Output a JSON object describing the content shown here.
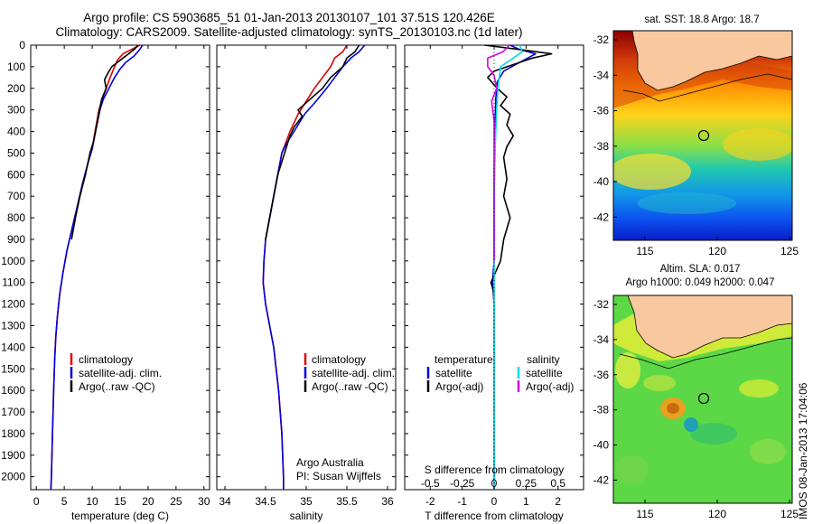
{
  "header": {
    "line1": "Argo profile: CS 5903685_51 01-Jan-2013 20130107_101 37.51S 120.426E",
    "line2": "Climatology: CARS2009. Satellite-adjusted climatology: synTS_20130103.nc (1d later)"
  },
  "colors": {
    "clim": "#dd0000",
    "sat": "#0000dd",
    "argo": "#000000",
    "sat_s": "#00dddd",
    "argo_s": "#dd00dd"
  },
  "chart_data": [
    {
      "type": "line",
      "id": "temperature",
      "xlabel": "temperature (deg C)",
      "xlim": [
        -1,
        31
      ],
      "ylim": [
        2060,
        0
      ],
      "xticks": [
        0,
        5,
        10,
        15,
        20,
        25,
        30
      ],
      "yticks": [
        0,
        100,
        200,
        300,
        400,
        500,
        600,
        700,
        800,
        900,
        1000,
        1100,
        1200,
        1300,
        1400,
        1500,
        1600,
        1700,
        1800,
        1900,
        2000
      ],
      "legend": [
        "climatology",
        "satellite-adj. clim.",
        "Argo(..raw -QC)"
      ],
      "series": [
        {
          "name": "climatology",
          "color_key": "clim",
          "points": [
            [
              18.5,
              0
            ],
            [
              17,
              20
            ],
            [
              15.5,
              40
            ],
            [
              14.5,
              70
            ],
            [
              14,
              100
            ],
            [
              13.2,
              150
            ],
            [
              12.5,
              200
            ],
            [
              11.8,
              250
            ],
            [
              11.2,
              300
            ],
            [
              10.5,
              400
            ],
            [
              10,
              480
            ],
            [
              9.2,
              550
            ],
            [
              8.2,
              650
            ],
            [
              7.3,
              750
            ],
            [
              6.4,
              850
            ],
            [
              5.5,
              950
            ],
            [
              4.8,
              1050
            ],
            [
              4.2,
              1150
            ],
            [
              3.8,
              1250
            ],
            [
              3.5,
              1350
            ],
            [
              3.3,
              1450
            ],
            [
              3.1,
              1600
            ],
            [
              2.9,
              1800
            ],
            [
              2.7,
              2000
            ],
            [
              2.6,
              2060
            ]
          ]
        },
        {
          "name": "satellite-adj. clim.",
          "color_key": "sat",
          "points": [
            [
              19,
              0
            ],
            [
              18.5,
              20
            ],
            [
              17.5,
              50
            ],
            [
              16,
              80
            ],
            [
              15,
              110
            ],
            [
              14,
              150
            ],
            [
              13,
              200
            ],
            [
              12,
              250
            ],
            [
              11.4,
              300
            ],
            [
              10.6,
              400
            ],
            [
              10,
              480
            ],
            [
              9.2,
              550
            ],
            [
              8.2,
              650
            ],
            [
              7.3,
              750
            ],
            [
              6.4,
              850
            ],
            [
              5.5,
              950
            ],
            [
              4.8,
              1050
            ],
            [
              4.2,
              1150
            ],
            [
              3.8,
              1250
            ],
            [
              3.5,
              1350
            ],
            [
              3.3,
              1450
            ],
            [
              3.1,
              1600
            ],
            [
              2.9,
              1800
            ],
            [
              2.7,
              2000
            ],
            [
              2.6,
              2060
            ]
          ]
        },
        {
          "name": "Argo(..raw -QC)",
          "color_key": "argo",
          "points": [
            [
              18.2,
              0
            ],
            [
              17.5,
              20
            ],
            [
              16.5,
              40
            ],
            [
              15.5,
              60
            ],
            [
              14.5,
              80
            ],
            [
              13.5,
              100
            ],
            [
              12.8,
              130
            ],
            [
              12.2,
              160
            ],
            [
              12.5,
              200
            ],
            [
              11.7,
              250
            ],
            [
              11.3,
              300
            ],
            [
              10.6,
              400
            ],
            [
              10.2,
              450
            ],
            [
              9.6,
              500
            ],
            [
              8.8,
              600
            ],
            [
              7.8,
              700
            ],
            [
              7,
              800
            ],
            [
              6.3,
              900
            ]
          ]
        }
      ]
    },
    {
      "type": "line",
      "id": "salinity",
      "xlabel": "salinity",
      "xlim": [
        33.9,
        36.1
      ],
      "ylim": [
        2060,
        0
      ],
      "xticks": [
        34,
        34.5,
        35,
        35.5,
        36
      ],
      "legend": [
        "climatology",
        "satellite-adj. clim.",
        "Argo(..raw -QC)"
      ],
      "credit": [
        "Argo Australia",
        "PI: Susan Wijffels"
      ],
      "series": [
        {
          "name": "climatology",
          "color_key": "clim",
          "points": [
            [
              35.5,
              0
            ],
            [
              35.45,
              30
            ],
            [
              35.35,
              60
            ],
            [
              35.3,
              100
            ],
            [
              35.2,
              150
            ],
            [
              35.1,
              200
            ],
            [
              35,
              260
            ],
            [
              34.9,
              320
            ],
            [
              34.8,
              400
            ],
            [
              34.75,
              450
            ],
            [
              34.7,
              500
            ],
            [
              34.65,
              600
            ],
            [
              34.6,
              700
            ],
            [
              34.55,
              800
            ],
            [
              34.5,
              900
            ],
            [
              34.48,
              1000
            ],
            [
              34.47,
              1100
            ],
            [
              34.5,
              1200
            ],
            [
              34.55,
              1300
            ],
            [
              34.6,
              1400
            ],
            [
              34.63,
              1500
            ],
            [
              34.66,
              1600
            ],
            [
              34.68,
              1700
            ],
            [
              34.7,
              1800
            ],
            [
              34.71,
              1900
            ],
            [
              34.72,
              2000
            ],
            [
              34.72,
              2060
            ]
          ]
        },
        {
          "name": "satellite-adj. clim.",
          "color_key": "sat",
          "points": [
            [
              35.72,
              0
            ],
            [
              35.65,
              30
            ],
            [
              35.55,
              60
            ],
            [
              35.45,
              100
            ],
            [
              35.35,
              150
            ],
            [
              35.25,
              200
            ],
            [
              35.12,
              260
            ],
            [
              34.98,
              320
            ],
            [
              34.85,
              400
            ],
            [
              34.75,
              460
            ],
            [
              34.7,
              500
            ],
            [
              34.65,
              600
            ],
            [
              34.6,
              700
            ],
            [
              34.55,
              800
            ],
            [
              34.5,
              900
            ],
            [
              34.48,
              1000
            ],
            [
              34.47,
              1100
            ],
            [
              34.5,
              1200
            ],
            [
              34.55,
              1300
            ],
            [
              34.6,
              1400
            ],
            [
              34.63,
              1500
            ],
            [
              34.66,
              1600
            ],
            [
              34.68,
              1700
            ],
            [
              34.7,
              1800
            ],
            [
              34.71,
              1900
            ],
            [
              34.72,
              2000
            ],
            [
              34.72,
              2060
            ]
          ]
        },
        {
          "name": "Argo(..raw -QC)",
          "color_key": "argo",
          "points": [
            [
              35.65,
              0
            ],
            [
              35.6,
              30
            ],
            [
              35.5,
              60
            ],
            [
              35.45,
              100
            ],
            [
              35.3,
              150
            ],
            [
              35.2,
              200
            ],
            [
              35.05,
              250
            ],
            [
              34.9,
              300
            ],
            [
              34.95,
              330
            ],
            [
              34.85,
              380
            ],
            [
              34.8,
              420
            ],
            [
              34.75,
              480
            ],
            [
              34.7,
              540
            ],
            [
              34.65,
              600
            ],
            [
              34.6,
              700
            ],
            [
              34.55,
              800
            ],
            [
              34.5,
              900
            ]
          ]
        }
      ]
    },
    {
      "type": "line",
      "id": "differences",
      "xlabel": "T difference from climatology",
      "top_label": "S difference from climatology",
      "xlim": [
        -2.8,
        2.8
      ],
      "ylim": [
        2060,
        0
      ],
      "xticks": [
        -2,
        -1,
        0,
        1,
        2
      ],
      "xtick_labels": [
        "-2",
        "-1",
        "0",
        "1",
        "2"
      ],
      "sticks": [
        -0.5,
        -0.25,
        0,
        0.25,
        0.5
      ],
      "stick_labels": [
        "-0.5",
        "-0.25",
        "0",
        "0.25",
        "0.5"
      ],
      "s_scale": 4,
      "legend_heads": [
        "temperature",
        "salinity"
      ],
      "legend": [
        "satellite",
        "Argo(-adj)",
        "satellite",
        "Argo(-adj)"
      ],
      "series": [
        {
          "name": "temperature satellite",
          "color_key": "sat",
          "var": "T",
          "points": [
            [
              0.5,
              0
            ],
            [
              0.8,
              20
            ],
            [
              1.3,
              40
            ],
            [
              0.8,
              80
            ],
            [
              0.3,
              120
            ],
            [
              0.1,
              170
            ],
            [
              0.05,
              250
            ],
            [
              0.02,
              400
            ],
            [
              0,
              600
            ],
            [
              0,
              800
            ],
            [
              0,
              1000
            ],
            [
              -0.05,
              1100
            ],
            [
              0,
              1200
            ],
            [
              0,
              1500
            ],
            [
              0,
              1800
            ],
            [
              0,
              2060
            ]
          ]
        },
        {
          "name": "temperature Argo(-adj)",
          "color_key": "argo",
          "var": "T",
          "points": [
            [
              -0.3,
              0
            ],
            [
              0.8,
              20
            ],
            [
              1.8,
              40
            ],
            [
              1.2,
              60
            ],
            [
              0.6,
              90
            ],
            [
              0,
              120
            ],
            [
              -0.2,
              150
            ],
            [
              0.1,
              200
            ],
            [
              0.4,
              240
            ],
            [
              0.2,
              280
            ],
            [
              0.5,
              320
            ],
            [
              0.4,
              370
            ],
            [
              0.6,
              420
            ],
            [
              0.4,
              470
            ],
            [
              0.3,
              520
            ],
            [
              0.4,
              620
            ],
            [
              0.3,
              700
            ],
            [
              0.5,
              800
            ],
            [
              0.3,
              900
            ],
            [
              0.2,
              1000
            ],
            [
              -0.1,
              1100
            ],
            [
              0,
              1150
            ]
          ]
        },
        {
          "name": "salinity satellite",
          "color_key": "sat_s",
          "var": "S",
          "points": [
            [
              0.2,
              0
            ],
            [
              0.22,
              30
            ],
            [
              0.15,
              60
            ],
            [
              0.05,
              100
            ],
            [
              0.03,
              200
            ],
            [
              0.02,
              300
            ],
            [
              0.01,
              450
            ],
            [
              0,
              700
            ],
            [
              0,
              1000
            ],
            [
              0,
              1500
            ],
            [
              0,
              2060
            ]
          ]
        },
        {
          "name": "salinity Argo(-adj)",
          "color_key": "argo_s",
          "var": "S",
          "points": [
            [
              0.12,
              0
            ],
            [
              0.07,
              30
            ],
            [
              -0.05,
              60
            ],
            [
              -0.05,
              100
            ],
            [
              0,
              140
            ],
            [
              0.02,
              200
            ],
            [
              -0.02,
              260
            ],
            [
              0,
              350
            ],
            [
              0,
              500
            ],
            [
              0,
              700
            ],
            [
              0,
              900
            ],
            [
              0,
              1000
            ]
          ]
        }
      ]
    }
  ],
  "maps": {
    "sst": {
      "title": "sat. SST: 18.8 Argo: 18.7",
      "yticks": [
        "-32",
        "-34",
        "-36",
        "-38",
        "-40",
        "-42"
      ],
      "xticks": [
        "115",
        "120",
        "125"
      ]
    },
    "sla": {
      "title1": "Altim. SLA: 0.017",
      "title2": "Argo h1000: 0.049 h2000: 0.047",
      "yticks": [
        "-32",
        "-34",
        "-36",
        "-38",
        "-40",
        "-42"
      ],
      "xticks": [
        "115",
        "120",
        "125"
      ]
    },
    "stamp": "IMOS 08-Jan-2013 17:04:06"
  }
}
